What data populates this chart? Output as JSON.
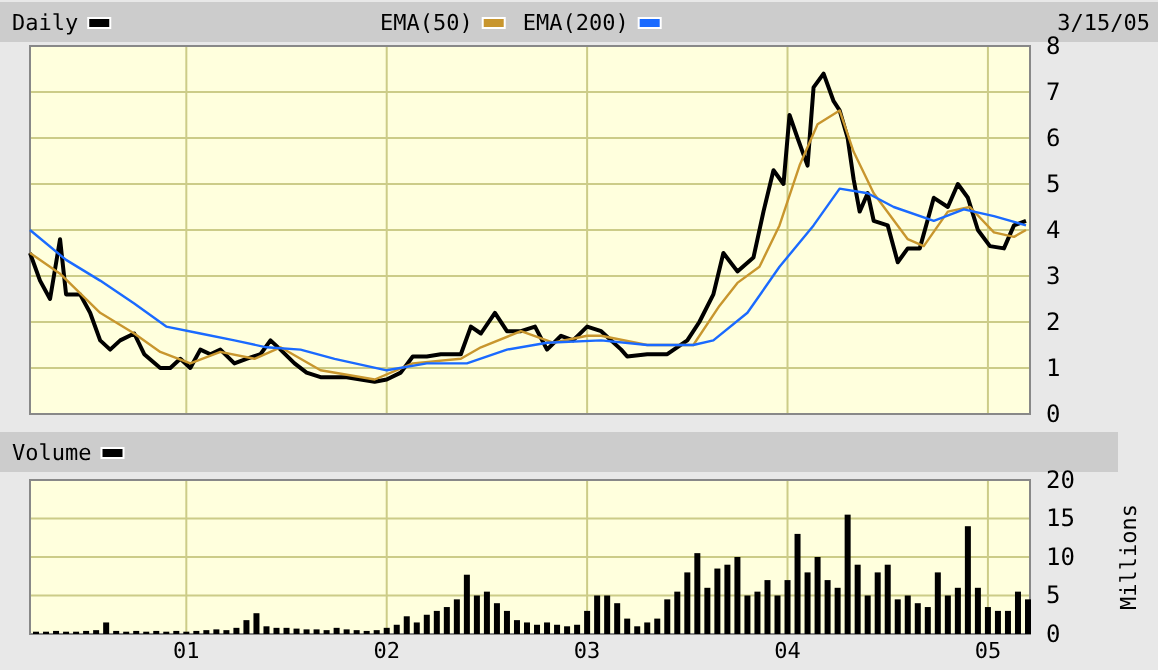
{
  "chart_data": [
    {
      "type": "line",
      "legend": "top",
      "grid": true,
      "tick_labels": "y",
      "line_style": "solid",
      "annotations": [
        "3/15/05"
      ],
      "xlim": [
        2000.22,
        2005.21
      ],
      "xticks": [
        {
          "value": 2001,
          "label": null
        },
        {
          "value": 2002,
          "label": null
        },
        {
          "value": 2003,
          "label": null
        },
        {
          "value": 2004,
          "label": null
        },
        {
          "value": 2005,
          "label": null
        }
      ],
      "ylim": [
        0,
        8
      ],
      "yticks": [
        0,
        1,
        2,
        3,
        4,
        5,
        6,
        7,
        8
      ],
      "series": [
        {
          "name": "Daily",
          "color": "#000000",
          "x": [
            2000.22,
            2000.27,
            2000.32,
            2000.37,
            2000.4,
            2000.47,
            2000.52,
            2000.57,
            2000.62,
            2000.67,
            2000.74,
            2000.79,
            2000.87,
            2000.92,
            2000.97,
            2001.02,
            2001.07,
            2001.12,
            2001.17,
            2001.24,
            2001.3,
            2001.37,
            2001.42,
            2001.47,
            2001.54,
            2001.6,
            2001.67,
            2001.74,
            2001.8,
            2001.87,
            2001.94,
            2002.0,
            2002.07,
            2002.13,
            2002.2,
            2002.27,
            2002.37,
            2002.42,
            2002.47,
            2002.54,
            2002.6,
            2002.67,
            2002.74,
            2002.8,
            2002.87,
            2002.93,
            2003.0,
            2003.07,
            2003.17,
            2003.2,
            2003.3,
            2003.4,
            2003.5,
            2003.56,
            2003.63,
            2003.68,
            2003.75,
            2003.83,
            2003.88,
            2003.93,
            2003.98,
            2004.01,
            2004.05,
            2004.1,
            2004.13,
            2004.18,
            2004.23,
            2004.26,
            2004.3,
            2004.33,
            2004.36,
            2004.4,
            2004.43,
            2004.5,
            2004.55,
            2004.6,
            2004.66,
            2004.73,
            2004.8,
            2004.85,
            2004.9,
            2004.95,
            2005.01,
            2005.08,
            2005.13,
            2005.19
          ],
          "values": [
            3.5,
            2.9,
            2.5,
            3.8,
            2.6,
            2.6,
            2.2,
            1.6,
            1.4,
            1.6,
            1.75,
            1.3,
            1.0,
            1.0,
            1.2,
            1.0,
            1.4,
            1.3,
            1.4,
            1.1,
            1.2,
            1.3,
            1.6,
            1.4,
            1.1,
            0.9,
            0.8,
            0.8,
            0.8,
            0.75,
            0.7,
            0.75,
            0.9,
            1.25,
            1.25,
            1.3,
            1.3,
            1.9,
            1.75,
            2.2,
            1.8,
            1.8,
            1.9,
            1.4,
            1.7,
            1.6,
            1.9,
            1.8,
            1.4,
            1.25,
            1.3,
            1.3,
            1.6,
            2.0,
            2.6,
            3.5,
            3.1,
            3.4,
            4.4,
            5.3,
            5.0,
            6.5,
            6.0,
            5.4,
            7.1,
            7.4,
            6.8,
            6.6,
            6.0,
            5.1,
            4.4,
            4.8,
            4.2,
            4.1,
            3.3,
            3.6,
            3.6,
            4.7,
            4.5,
            5.0,
            4.7,
            4.0,
            3.65,
            3.6,
            4.1,
            4.2
          ]
        },
        {
          "name": "EMA(50)",
          "color": "#c8962e",
          "x": [
            2000.22,
            2000.37,
            2000.57,
            2000.74,
            2000.87,
            2001.02,
            2001.17,
            2001.34,
            2001.47,
            2001.67,
            2001.94,
            2002.13,
            2002.37,
            2002.47,
            2002.67,
            2002.83,
            2003.0,
            2003.07,
            2003.3,
            2003.53,
            2003.66,
            2003.75,
            2003.86,
            2003.96,
            2004.06,
            2004.15,
            2004.26,
            2004.33,
            2004.43,
            2004.6,
            2004.68,
            2004.8,
            2004.91,
            2005.03,
            2005.13,
            2005.19
          ],
          "values": [
            3.5,
            3.05,
            2.2,
            1.75,
            1.35,
            1.1,
            1.35,
            1.2,
            1.45,
            0.95,
            0.75,
            1.1,
            1.2,
            1.45,
            1.8,
            1.55,
            1.7,
            1.7,
            1.5,
            1.5,
            2.35,
            2.85,
            3.2,
            4.1,
            5.4,
            6.3,
            6.6,
            5.7,
            4.8,
            3.8,
            3.65,
            4.4,
            4.5,
            3.95,
            3.85,
            4.0
          ]
        },
        {
          "name": "EMA(200)",
          "color": "#1a6aff",
          "x": [
            2000.22,
            2000.4,
            2000.57,
            2000.74,
            2000.9,
            2001.07,
            2001.24,
            2001.4,
            2001.57,
            2001.74,
            2002.0,
            2002.2,
            2002.4,
            2002.6,
            2002.8,
            2003.07,
            2003.3,
            2003.53,
            2003.63,
            2003.8,
            2003.96,
            2004.13,
            2004.26,
            2004.4,
            2004.53,
            2004.73,
            2004.88,
            2005.03,
            2005.19
          ],
          "values": [
            4.0,
            3.35,
            2.9,
            2.4,
            1.9,
            1.75,
            1.6,
            1.45,
            1.4,
            1.2,
            0.95,
            1.1,
            1.1,
            1.4,
            1.55,
            1.6,
            1.5,
            1.5,
            1.6,
            2.2,
            3.2,
            4.1,
            4.9,
            4.8,
            4.5,
            4.2,
            4.45,
            4.3,
            4.1
          ]
        }
      ]
    },
    {
      "type": "bar",
      "legend": "top",
      "grid": true,
      "ylabel": "Millions",
      "xlim": [
        2000.22,
        2005.21
      ],
      "xticks": [
        {
          "value": 2001,
          "label": "01"
        },
        {
          "value": 2002,
          "label": "02"
        },
        {
          "value": 2003,
          "label": "03"
        },
        {
          "value": 2004,
          "label": "04"
        },
        {
          "value": 2005,
          "label": "05"
        }
      ],
      "ylim": [
        0,
        20
      ],
      "yticks": [
        0,
        5,
        10,
        15,
        20
      ],
      "series": [
        {
          "name": "Volume",
          "color": "#000000",
          "x": [
            2000.25,
            2000.3,
            2000.35,
            2000.4,
            2000.45,
            2000.5,
            2000.55,
            2000.6,
            2000.65,
            2000.7,
            2000.75,
            2000.8,
            2000.85,
            2000.9,
            2000.95,
            2001.0,
            2001.05,
            2001.1,
            2001.15,
            2001.2,
            2001.25,
            2001.3,
            2001.35,
            2001.4,
            2001.45,
            2001.5,
            2001.55,
            2001.6,
            2001.65,
            2001.7,
            2001.75,
            2001.8,
            2001.85,
            2001.9,
            2001.95,
            2002.0,
            2002.05,
            2002.1,
            2002.15,
            2002.2,
            2002.25,
            2002.3,
            2002.35,
            2002.4,
            2002.45,
            2002.5,
            2002.55,
            2002.6,
            2002.65,
            2002.7,
            2002.75,
            2002.8,
            2002.85,
            2002.9,
            2002.95,
            2003.0,
            2003.05,
            2003.1,
            2003.15,
            2003.2,
            2003.25,
            2003.3,
            2003.35,
            2003.4,
            2003.45,
            2003.5,
            2003.55,
            2003.6,
            2003.65,
            2003.7,
            2003.75,
            2003.8,
            2003.85,
            2003.9,
            2003.95,
            2004.0,
            2004.05,
            2004.1,
            2004.15,
            2004.2,
            2004.25,
            2004.3,
            2004.35,
            2004.4,
            2004.45,
            2004.5,
            2004.55,
            2004.6,
            2004.65,
            2004.7,
            2004.75,
            2004.8,
            2004.85,
            2004.9,
            2004.95,
            2005.0,
            2005.05,
            2005.1,
            2005.15,
            2005.2
          ],
          "values": [
            0.3,
            0.3,
            0.4,
            0.3,
            0.3,
            0.4,
            0.5,
            1.5,
            0.4,
            0.3,
            0.4,
            0.3,
            0.4,
            0.3,
            0.4,
            0.3,
            0.4,
            0.5,
            0.6,
            0.5,
            0.8,
            1.8,
            2.7,
            1.0,
            0.8,
            0.8,
            0.7,
            0.6,
            0.6,
            0.5,
            0.8,
            0.6,
            0.5,
            0.4,
            0.5,
            0.8,
            1.2,
            2.3,
            1.5,
            2.5,
            3.0,
            3.5,
            4.5,
            7.7,
            5.0,
            5.5,
            4.0,
            3.0,
            1.8,
            1.5,
            1.2,
            1.5,
            1.2,
            1.0,
            1.2,
            3.0,
            5.0,
            5.0,
            4.0,
            2.0,
            1.0,
            1.5,
            2.0,
            4.5,
            5.5,
            8.0,
            10.5,
            6.0,
            8.5,
            9.0,
            10.0,
            5.0,
            5.5,
            7.0,
            5.0,
            7,
            13,
            8,
            10,
            7,
            6,
            15.5,
            9,
            5,
            8,
            9,
            4.5,
            5,
            4,
            3.5,
            8,
            5,
            6,
            14,
            6,
            3.5,
            3,
            3,
            5.5,
            4.5
          ]
        }
      ]
    }
  ]
}
